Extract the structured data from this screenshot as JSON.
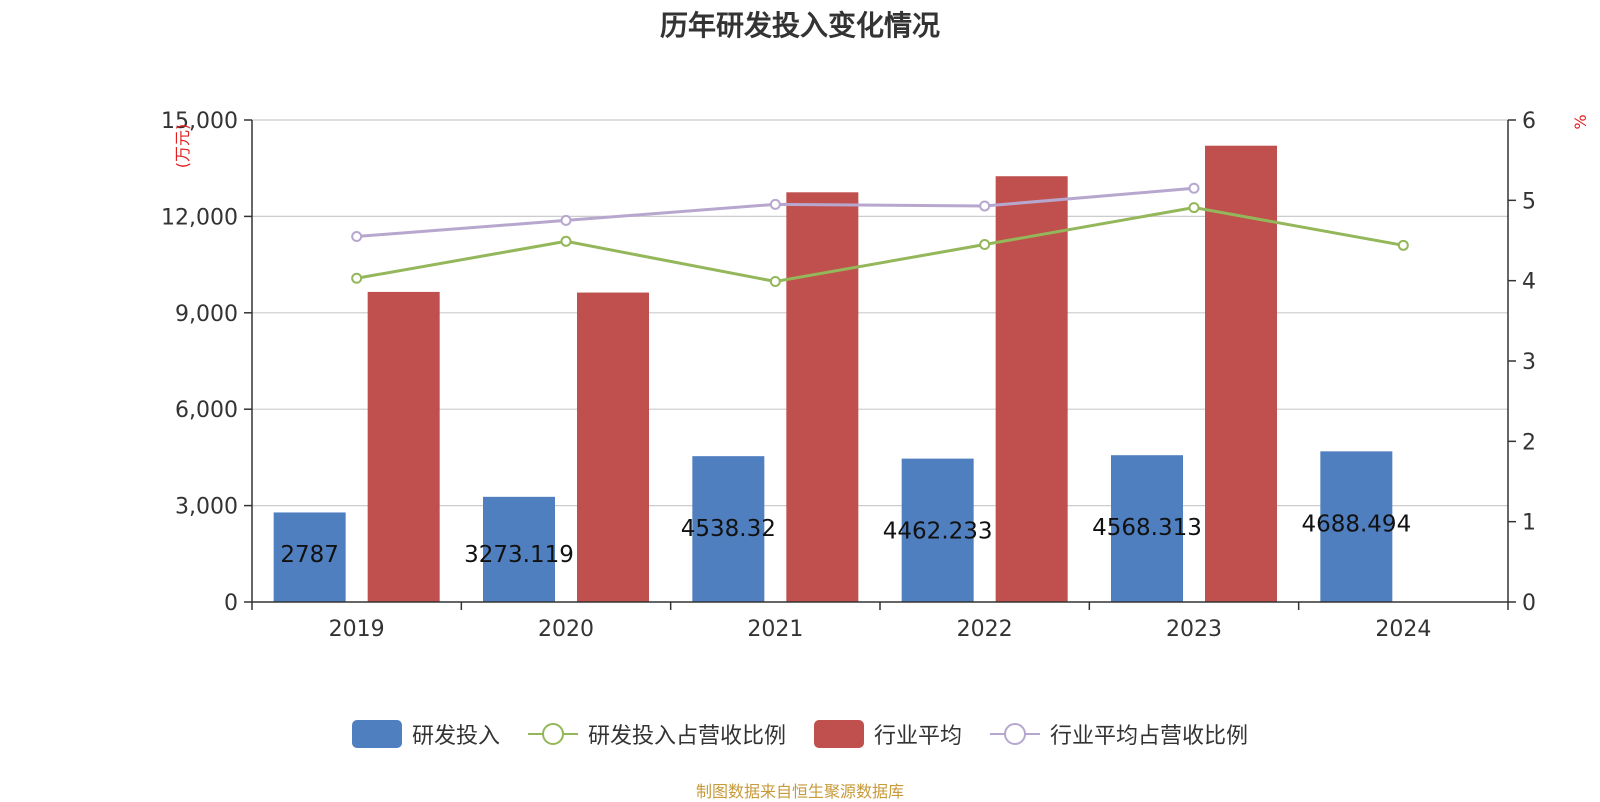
{
  "chart_data": {
    "type": "bar",
    "title": "历年研发投入变化情况",
    "categories": [
      "2019",
      "2020",
      "2021",
      "2022",
      "2023",
      "2024"
    ],
    "y_left": {
      "unit": "万元",
      "ylim": [
        0,
        15000
      ],
      "ticks": [
        0,
        3000,
        6000,
        9000,
        12000,
        15000
      ],
      "tick_labels": [
        "0",
        "3,000",
        "6,000",
        "9,000",
        "12,000",
        "15,000"
      ]
    },
    "y_right": {
      "unit": "%",
      "ylim": [
        0,
        6
      ],
      "ticks": [
        0,
        1,
        2,
        3,
        4,
        5,
        6
      ],
      "tick_labels": [
        "0",
        "1",
        "2",
        "3",
        "4",
        "5",
        "6"
      ]
    },
    "grid": true,
    "legend_position": "bottom",
    "series": [
      {
        "name": "研发投入",
        "type": "bar",
        "axis": "left",
        "color": "#4f7fbf",
        "values": [
          2787,
          3273.119,
          4538.32,
          4462.233,
          4568.313,
          4688.494
        ],
        "labels": [
          "2787",
          "3273.119",
          "4538.32",
          "4462.233",
          "4568.313",
          "4688.494"
        ]
      },
      {
        "name": "研发投入占营收比例",
        "type": "line",
        "axis": "right",
        "color": "#93b75a",
        "values": [
          4.03,
          4.49,
          3.99,
          4.45,
          4.91,
          4.44
        ]
      },
      {
        "name": "行业平均",
        "type": "bar",
        "axis": "left",
        "color": "#c0504d",
        "values": [
          9650,
          9630,
          12750,
          13250,
          14200,
          null
        ]
      },
      {
        "name": "行业平均占营收比例",
        "type": "line",
        "axis": "right",
        "color": "#b7a7cf",
        "values": [
          4.55,
          4.75,
          4.95,
          4.93,
          5.15,
          null
        ]
      }
    ]
  },
  "source": "制图数据来自恒生聚源数据库"
}
